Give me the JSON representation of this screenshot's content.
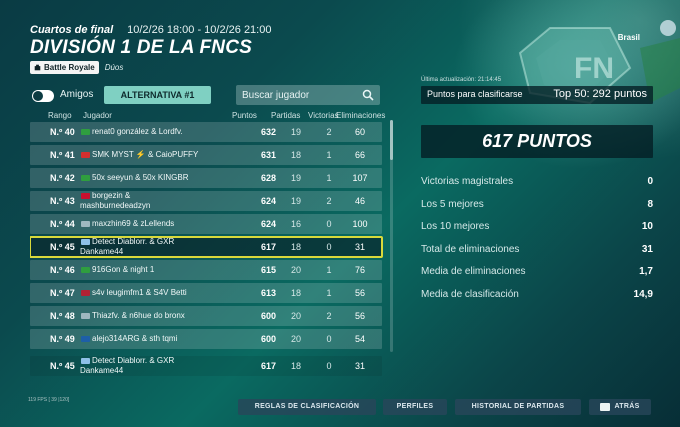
{
  "header": {
    "stage": "Cuartos de final",
    "date_range": "10/2/26 18:00 - 10/2/26 21:00",
    "title": "DIVISIÓN 1 DE LA FNCS",
    "mode_badge": "Battle Royale",
    "mode_sub": "Dúos",
    "region": "Brasil"
  },
  "controls": {
    "friends_label": "Amigos",
    "alternative_label": "ALTERNATIVA #1",
    "search_placeholder": "Buscar jugador"
  },
  "columns": {
    "rank": "Rango",
    "player": "Jugador",
    "points": "Puntos",
    "matches": "Partidas",
    "wins": "Victorias",
    "elims": "Eliminaciones"
  },
  "rows": [
    {
      "rank": "N.º 40",
      "players": [
        "renat0 gonzález & Lordfv."
      ],
      "flags": [
        "#2f9e3f",
        "#2f52c4"
      ],
      "points": "632",
      "matches": "19",
      "wins": "2",
      "elims": "60"
    },
    {
      "rank": "N.º 41",
      "players": [
        "SMK MYST ⚡ & CaioPUFFY"
      ],
      "flags": [
        "#d32f2f",
        "#2f9e3f"
      ],
      "points": "631",
      "matches": "18",
      "wins": "1",
      "elims": "66"
    },
    {
      "rank": "N.º 42",
      "players": [
        "50x seeyun & 50x KINGBR"
      ],
      "flags": [
        "#2f9e3f",
        "#2f9e3f"
      ],
      "points": "628",
      "matches": "19",
      "wins": "1",
      "elims": "107"
    },
    {
      "rank": "N.º 43",
      "players": [
        "borgezin &",
        "mashburnedeadzyn"
      ],
      "flags": [
        "#c8102e",
        "#222222"
      ],
      "points": "624",
      "matches": "19",
      "wins": "2",
      "elims": "46"
    },
    {
      "rank": "N.º 44",
      "players": [
        "maxzhin69 & zLellends"
      ],
      "flags": [
        null,
        "#1f8a3a"
      ],
      "points": "624",
      "matches": "16",
      "wins": "0",
      "elims": "100"
    },
    {
      "rank": "N.º 45",
      "players": [
        "Detect Diablorr. & GXR",
        "Dankame44"
      ],
      "flags": [
        "#8fc0e8",
        null
      ],
      "points": "617",
      "matches": "18",
      "wins": "0",
      "elims": "31",
      "highlight": true
    },
    {
      "rank": "N.º 46",
      "players": [
        "916Gon & night 1"
      ],
      "flags": [
        "#2f9e3f",
        "#2f52c4"
      ],
      "points": "615",
      "matches": "20",
      "wins": "1",
      "elims": "76"
    },
    {
      "rank": "N.º 47",
      "players": [
        "s4v leugimfm1 & S4V Betti"
      ],
      "flags": [
        "#b22234",
        "#2f9e3f"
      ],
      "points": "613",
      "matches": "18",
      "wins": "1",
      "elims": "56"
    },
    {
      "rank": "N.º 48",
      "players": [
        "Thiazfv. & n6hue do bronx"
      ],
      "flags": [
        null,
        "#2f52c4"
      ],
      "points": "600",
      "matches": "20",
      "wins": "2",
      "elims": "56"
    },
    {
      "rank": "N.º 49",
      "players": [
        "alejo314ARG & sth tqmi"
      ],
      "flags": [
        "#1d5fa8",
        "#8fc0e8"
      ],
      "points": "600",
      "matches": "20",
      "wins": "0",
      "elims": "54"
    }
  ],
  "my_row": {
    "rank": "N.º 45",
    "players": [
      "Detect Diablorr. & GXR",
      "Dankame44"
    ],
    "flags": [
      "#8fc0e8",
      null
    ],
    "points": "617",
    "matches": "18",
    "wins": "0",
    "elims": "31"
  },
  "stats_panel": {
    "last_update": "Última actualización: 21:14:45",
    "qualify_label": "Puntos para clasificarse",
    "qualify_value": "Top 50: 292 puntos",
    "total_points": "617 PUNTOS",
    "stats": [
      {
        "label": "Victorias magistrales",
        "value": "0"
      },
      {
        "label": "Los 5 mejores",
        "value": "8"
      },
      {
        "label": "Los 10 mejores",
        "value": "10"
      },
      {
        "label": "Total de eliminaciones",
        "value": "31"
      },
      {
        "label": "Media de eliminaciones",
        "value": "1,7"
      },
      {
        "label": "Media de clasificación",
        "value": "14,9"
      }
    ]
  },
  "footer": {
    "fps": "119 FPS [ 39 |120]",
    "rules": "REGLAS DE CLASIFICACIÓN",
    "profiles": "PERFILES",
    "history": "HISTORIAL DE PARTIDAS",
    "back": "ATRÁS"
  },
  "colors": {
    "accent": "#7fd0c2",
    "highlight": "#d9d93b",
    "panel": "#04242b"
  },
  "icons": {
    "search": "search-icon",
    "mode": "battle-royale-icon",
    "back": "keyboard-key-icon"
  }
}
